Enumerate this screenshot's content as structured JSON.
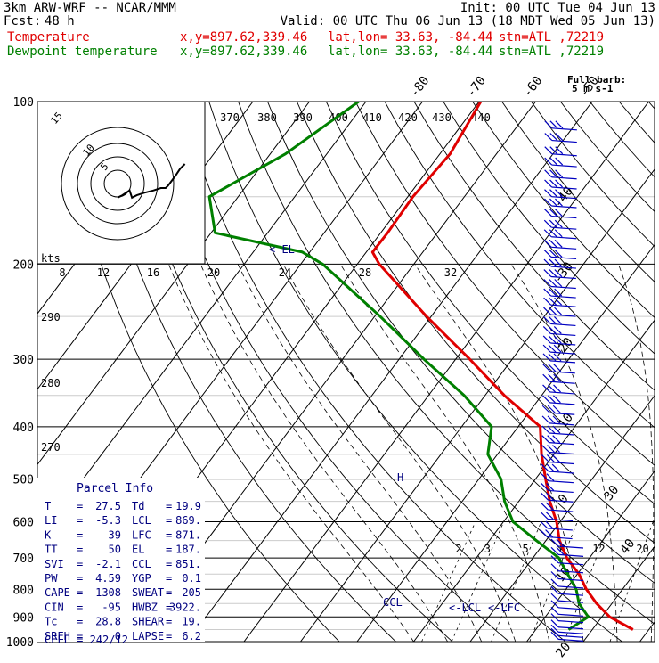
{
  "header": {
    "model": "3km ARW-WRF -- NCAR/MMM",
    "init": "Init: 00 UTC Tue 04 Jun 13",
    "fcst_label": "Fcst:",
    "fcst_value": "48 h",
    "valid": "Valid: 00 UTC Thu 06 Jun 13 (18 MDT Wed 05 Jun 13)",
    "line_temp": {
      "name": "Temperature",
      "xy": "x,y=897.62,339.46",
      "latlon": "lat,lon= 33.63, -84.44",
      "stn": "stn=ATL ,72219"
    },
    "line_dew": {
      "name": "Dewpoint temperature",
      "xy": "x,y=897.62,339.46",
      "latlon": "lat,lon= 33.63, -84.44",
      "stn": "stn=ATL ,72219"
    }
  },
  "barb_legend": {
    "line1": "Full barb:",
    "line2": "5 m s-1"
  },
  "parcel": {
    "title": "Parcel Info",
    "rows": [
      {
        "l1": "T",
        "v1": "27.5",
        "l2": "Td",
        "v2": "19.9"
      },
      {
        "l1": "LI",
        "v1": "-5.3",
        "l2": "LCL",
        "v2": "869."
      },
      {
        "l1": "K",
        "v1": "39",
        "l2": "LFC",
        "v2": "871."
      },
      {
        "l1": "TT",
        "v1": "50",
        "l2": "EL",
        "v2": "187."
      },
      {
        "l1": "SVI",
        "v1": "-2.1",
        "l2": "CCL",
        "v2": "851."
      },
      {
        "l1": "PW",
        "v1": "4.59",
        "l2": "YGP",
        "v2": "0.1"
      },
      {
        "l1": "CAPE",
        "v1": "1308",
        "l2": "SWEAT",
        "v2": "205"
      },
      {
        "l1": "CIN",
        "v1": "-95",
        "l2": "HWBZ",
        "v2": "3922."
      },
      {
        "l1": "Tc",
        "v1": "28.8",
        "l2": "SHEAR",
        "v2": "19."
      },
      {
        "l1": "SREH",
        "v1": "0",
        "l2": "LAPSE",
        "v2": "6.2"
      }
    ],
    "cell": "CELL = 242/12"
  },
  "labels": {
    "el": "<-EL",
    "lcl": "<-LCL",
    "lfc": "<-LFC",
    "ccl": "CCL",
    "h": "H",
    "kts": "kts"
  },
  "chart_data": {
    "type": "line",
    "title": "",
    "xlabel": "",
    "ylabel": "",
    "pressure_ticks": [
      "100",
      "200",
      "300",
      "400",
      "500",
      "600",
      "700",
      "800",
      "900",
      "1000"
    ],
    "pressure_ticks_hPa": [
      100,
      200,
      300,
      400,
      500,
      600,
      700,
      800,
      900,
      1000
    ],
    "isotherm_labels": [
      "-80",
      "-70",
      "-60",
      "-50",
      "-40",
      "-30",
      "-20",
      "-10",
      "0",
      "10",
      "20",
      "30",
      "40"
    ],
    "isotherm_labels_C": [
      -80,
      -70,
      -60,
      -50,
      -40,
      -30,
      -20,
      -10,
      0,
      10,
      20,
      30,
      40
    ],
    "theta_labels": [
      "370",
      "380",
      "390",
      "400",
      "410",
      "420",
      "430",
      "440"
    ],
    "theta_labels_mid": [
      "290",
      "280",
      "270"
    ],
    "mixing_ratio_labels": [
      "2",
      "3",
      "5",
      "8",
      "12",
      "20"
    ],
    "hodograph_speed_labels": [
      "8",
      "12",
      "16",
      "20",
      "24",
      "28",
      "32"
    ],
    "hodograph_ring_labels": [
      "5",
      "10",
      "15"
    ],
    "series": [
      {
        "name": "Temperature",
        "color": "#e00000",
        "points": [
          [
            100,
            -69.7
          ],
          [
            125,
            -68.2
          ],
          [
            150,
            -69.1
          ],
          [
            175,
            -68.8
          ],
          [
            190,
            -68.9
          ],
          [
            200,
            -66.1
          ],
          [
            250,
            -50.8
          ],
          [
            300,
            -37.5
          ],
          [
            350,
            -26.6
          ],
          [
            400,
            -16.1
          ],
          [
            450,
            -12.2
          ],
          [
            500,
            -8.2
          ],
          [
            550,
            -4.5
          ],
          [
            600,
            -0.6
          ],
          [
            650,
            2.4
          ],
          [
            700,
            6.0
          ],
          [
            750,
            10.3
          ],
          [
            800,
            13.6
          ],
          [
            850,
            17.3
          ],
          [
            900,
            21.4
          ],
          [
            950,
            27.2
          ]
        ]
      },
      {
        "name": "Dewpoint temperature",
        "color": "#008000",
        "points": [
          [
            100,
            -91.3
          ],
          [
            125,
            -97.3
          ],
          [
            150,
            -105.1
          ],
          [
            175,
            -99.3
          ],
          [
            190,
            -81.3
          ],
          [
            200,
            -76.1
          ],
          [
            250,
            -59.0
          ],
          [
            300,
            -45.6
          ],
          [
            350,
            -33.7
          ],
          [
            400,
            -24.7
          ],
          [
            450,
            -21.7
          ],
          [
            500,
            -16.1
          ],
          [
            550,
            -12.5
          ],
          [
            600,
            -8.3
          ],
          [
            650,
            -1.7
          ],
          [
            700,
            4.6
          ],
          [
            750,
            8.3
          ],
          [
            800,
            11.8
          ],
          [
            850,
            14.2
          ],
          [
            900,
            17.6
          ],
          [
            950,
            15.8
          ]
        ]
      }
    ],
    "hodograph": [
      [
        0,
        -14
      ],
      [
        2,
        -13
      ],
      [
        5,
        -11
      ],
      [
        6,
        -14
      ],
      [
        8,
        -13
      ],
      [
        11,
        -12
      ],
      [
        15,
        -11
      ],
      [
        18,
        -10
      ],
      [
        20,
        -10
      ],
      [
        21,
        -9
      ],
      [
        24,
        -5
      ],
      [
        26,
        -2
      ],
      [
        28,
        0
      ]
    ],
    "wind_levels_hPa": [
      112,
      118,
      125,
      131,
      138,
      144,
      150,
      156,
      163,
      171,
      178,
      186,
      194,
      202,
      211,
      220,
      229,
      238,
      248,
      258,
      269,
      280,
      291,
      302,
      316,
      330,
      345,
      361,
      377,
      394,
      411,
      428,
      446,
      465,
      484,
      504,
      525,
      547,
      570,
      593,
      617,
      640,
      666,
      690,
      715,
      740,
      765,
      790,
      815,
      840,
      865,
      890,
      915,
      940,
      960,
      975,
      990
    ]
  },
  "colors": {
    "temperature": "#e00000",
    "dewpoint": "#008000",
    "barbs": "#0000c0",
    "text_blue": "#000080",
    "grid": "#000000"
  }
}
